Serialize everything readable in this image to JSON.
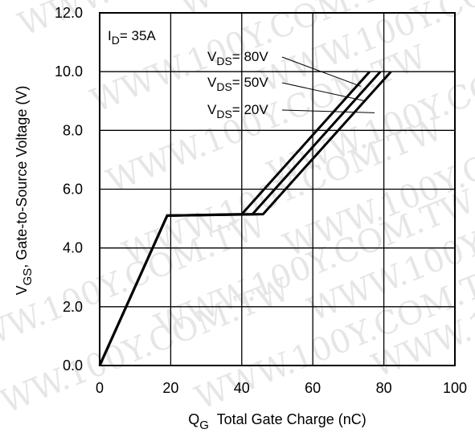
{
  "watermark": "WWW.100Y.COM.TW",
  "chart_data": {
    "type": "line",
    "xlabel": {
      "main": "Q",
      "sub": "G",
      "rest": "  Total Gate Charge (nC)"
    },
    "ylabel": {
      "main": "V",
      "sub": "GS",
      "rest": ", Gate-to-Source Voltage (V)"
    },
    "xlim": [
      0,
      100
    ],
    "ylim": [
      0,
      12
    ],
    "x_ticks": [
      0,
      20,
      40,
      60,
      80,
      100
    ],
    "x_tick_labels": [
      "0",
      "20",
      "40",
      "60",
      "80",
      "100"
    ],
    "y_ticks": [
      0,
      2,
      4,
      6,
      8,
      10,
      12
    ],
    "y_tick_labels": [
      "0.0",
      "2.0",
      "4.0",
      "6.0",
      "8.0",
      "10.0",
      "12.0"
    ],
    "grid": true,
    "condition": {
      "main": "I",
      "sub": "D",
      "rest": "= 35A"
    },
    "series": [
      {
        "name": "VDS= 80V",
        "label": {
          "main": "V",
          "sub": "DS",
          "rest": "= 80V"
        },
        "x": [
          0,
          19,
          40,
          76
        ],
        "y": [
          0,
          5.1,
          5.15,
          10
        ]
      },
      {
        "name": "VDS= 50V",
        "label": {
          "main": "V",
          "sub": "DS",
          "rest": "= 50V"
        },
        "x": [
          0,
          19,
          43,
          79
        ],
        "y": [
          0,
          5.1,
          5.15,
          10
        ]
      },
      {
        "name": "VDS= 20V",
        "label": {
          "main": "V",
          "sub": "DS",
          "rest": "= 20V"
        },
        "x": [
          0,
          19,
          46,
          82
        ],
        "y": [
          0,
          5.1,
          5.15,
          10
        ]
      }
    ],
    "leader_targets": [
      {
        "x": 73.5,
        "y": 9.5
      },
      {
        "x": 74.8,
        "y": 9.0
      },
      {
        "x": 77.4,
        "y": 8.6
      }
    ]
  }
}
